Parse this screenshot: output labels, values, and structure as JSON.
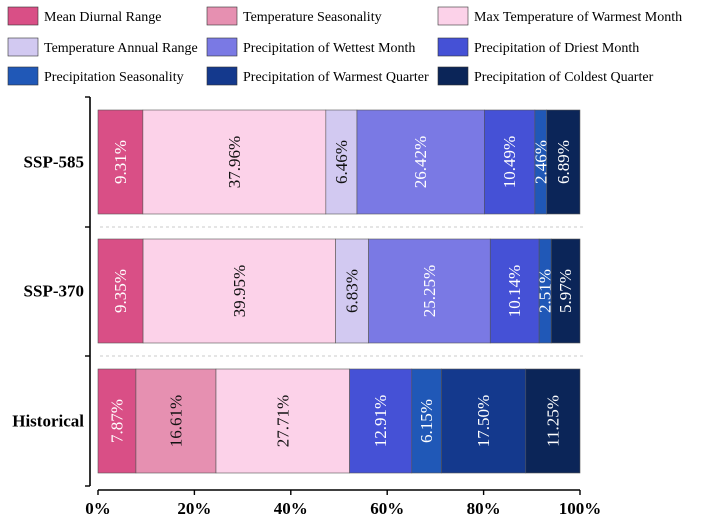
{
  "chart_data": {
    "type": "bar",
    "orientation": "horizontal",
    "stacked": true,
    "categories": [
      "SSP-585",
      "SSP-370",
      "Historical"
    ],
    "series": [
      {
        "name": "Mean Diurnal Range",
        "color": "#d94f86",
        "values": [
          9.31,
          9.35,
          7.87
        ]
      },
      {
        "name": "Temperature Seasonality",
        "color": "#e690b1",
        "values": [
          0,
          0,
          16.61
        ]
      },
      {
        "name": "Max Temperature of Warmest Month",
        "color": "#fcd2e9",
        "values": [
          37.96,
          39.95,
          27.71
        ]
      },
      {
        "name": "Temperature Annual Range",
        "color": "#d2c9f1",
        "values": [
          6.46,
          6.83,
          0
        ]
      },
      {
        "name": "Precipitation of Wettest Month",
        "color": "#7a79e4",
        "values": [
          26.42,
          25.25,
          0
        ]
      },
      {
        "name": "Precipitation of Driest Month",
        "color": "#4551d6",
        "values": [
          10.49,
          10.14,
          12.91
        ]
      },
      {
        "name": "Precipitation Seasonality",
        "color": "#2058b7",
        "values": [
          2.46,
          2.51,
          6.15
        ]
      },
      {
        "name": "Precipitation of Warmest Quarter",
        "color": "#14398d",
        "values": [
          0,
          0,
          17.5
        ]
      },
      {
        "name": "Precipitation of Coldest Quarter",
        "color": "#0b2558",
        "values": [
          6.89,
          5.97,
          11.25
        ]
      }
    ],
    "xticks": [
      "0%",
      "20%",
      "40%",
      "60%",
      "80%",
      "100%"
    ],
    "xlim": [
      0,
      100
    ],
    "grid": false,
    "legend_position": "top"
  }
}
